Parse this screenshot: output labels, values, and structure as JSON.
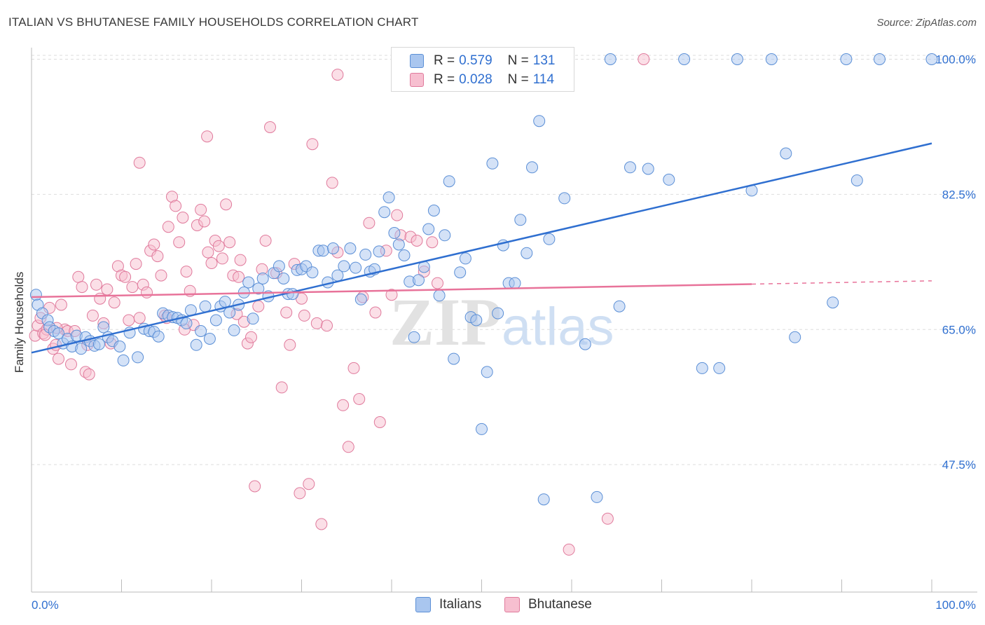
{
  "title": "ITALIAN VS BHUTANESE FAMILY HOUSEHOLDS CORRELATION CHART",
  "source": "Source: ZipAtlas.com",
  "watermark": {
    "zip": "ZIP",
    "atlas": "atlas"
  },
  "legend": {
    "italians": {
      "r_label": "R =",
      "r_value": "0.579",
      "n_label": "N =",
      "n_value": "131"
    },
    "bhutanese": {
      "r_label": "R =",
      "r_value": "0.028",
      "n_label": "N =",
      "n_value": "114"
    }
  },
  "bottom_legend": {
    "italians": "Italians",
    "bhutanese": "Bhutanese"
  },
  "colors": {
    "italians_fill": "#a9c6ef",
    "italians_stroke": "#5b8fd6",
    "italians_line": "#2f6fd0",
    "bhutanese_fill": "#f7bfd0",
    "bhutanese_stroke": "#e07a9c",
    "bhutanese_line": "#e8739a",
    "axis_label": "#2f6fd0",
    "grid": "#dddddd"
  },
  "chart_data": {
    "type": "scatter",
    "title": "ITALIAN VS BHUTANESE FAMILY HOUSEHOLDS CORRELATION CHART",
    "xlabel": "",
    "ylabel": "Family Households",
    "xlim": [
      0,
      100
    ],
    "ylim": [
      31.0,
      100.5
    ],
    "x_tick_labels": [
      "0.0%",
      "100.0%"
    ],
    "y_ticks": [
      47.5,
      65.0,
      82.5,
      100.0
    ],
    "y_tick_labels": [
      "47.5%",
      "65.0%",
      "82.5%",
      "100.0%"
    ],
    "grid": "horizontal dashed",
    "legend_position": "top-center",
    "series": [
      {
        "name": "Italians",
        "trend": {
          "x": [
            0,
            100
          ],
          "y": [
            62.0,
            89.1
          ]
        },
        "points": [
          [
            0.5,
            69.5
          ],
          [
            0.7,
            68.2
          ],
          [
            1.2,
            67.1
          ],
          [
            1.8,
            66.2
          ],
          [
            2.0,
            65.3
          ],
          [
            2.5,
            64.8
          ],
          [
            3.0,
            64.5
          ],
          [
            3.5,
            63.2
          ],
          [
            4.0,
            63.8
          ],
          [
            4.5,
            62.8
          ],
          [
            5.0,
            64.2
          ],
          [
            5.5,
            62.5
          ],
          [
            6.0,
            64.0
          ],
          [
            6.5,
            63.5
          ],
          [
            7.0,
            62.9
          ],
          [
            7.5,
            63.1
          ],
          [
            8.0,
            65.3
          ],
          [
            8.5,
            64.0
          ],
          [
            9.0,
            63.5
          ],
          [
            9.8,
            62.8
          ],
          [
            10.2,
            61.0
          ],
          [
            10.9,
            64.6
          ],
          [
            11.8,
            61.4
          ],
          [
            12.5,
            65.1
          ],
          [
            13.1,
            64.8
          ],
          [
            13.6,
            64.7
          ],
          [
            14.1,
            64.1
          ],
          [
            14.6,
            67.1
          ],
          [
            15.2,
            66.8
          ],
          [
            15.7,
            66.6
          ],
          [
            16.2,
            66.5
          ],
          [
            16.7,
            66.2
          ],
          [
            17.2,
            65.8
          ],
          [
            17.7,
            67.5
          ],
          [
            18.3,
            63.0
          ],
          [
            18.8,
            64.8
          ],
          [
            19.3,
            68.0
          ],
          [
            19.8,
            63.8
          ],
          [
            20.5,
            66.2
          ],
          [
            21.0,
            68.0
          ],
          [
            21.5,
            68.6
          ],
          [
            22.0,
            67.2
          ],
          [
            22.5,
            64.9
          ],
          [
            23.0,
            68.2
          ],
          [
            23.6,
            69.8
          ],
          [
            24.1,
            71.1
          ],
          [
            24.6,
            66.4
          ],
          [
            25.2,
            70.3
          ],
          [
            25.7,
            71.6
          ],
          [
            26.3,
            69.3
          ],
          [
            26.9,
            72.3
          ],
          [
            27.5,
            73.2
          ],
          [
            28.0,
            71.6
          ],
          [
            28.5,
            69.6
          ],
          [
            29.0,
            69.6
          ],
          [
            29.5,
            72.7
          ],
          [
            30.0,
            72.8
          ],
          [
            30.5,
            73.2
          ],
          [
            31.2,
            72.4
          ],
          [
            31.9,
            75.2
          ],
          [
            32.4,
            75.2
          ],
          [
            32.9,
            71.1
          ],
          [
            33.5,
            75.5
          ],
          [
            34.0,
            72.0
          ],
          [
            34.7,
            73.2
          ],
          [
            35.4,
            75.5
          ],
          [
            36.0,
            73.0
          ],
          [
            36.6,
            68.9
          ],
          [
            37.1,
            74.7
          ],
          [
            37.6,
            72.5
          ],
          [
            38.1,
            72.8
          ],
          [
            38.6,
            75.1
          ],
          [
            39.2,
            80.2
          ],
          [
            39.7,
            82.1
          ],
          [
            40.3,
            77.5
          ],
          [
            40.8,
            76.0
          ],
          [
            41.4,
            74.6
          ],
          [
            42.0,
            71.2
          ],
          [
            42.5,
            64.0
          ],
          [
            43.0,
            71.4
          ],
          [
            43.6,
            73.1
          ],
          [
            44.1,
            78.0
          ],
          [
            44.7,
            80.4
          ],
          [
            45.3,
            69.4
          ],
          [
            45.9,
            77.2
          ],
          [
            46.4,
            84.2
          ],
          [
            46.9,
            61.2
          ],
          [
            47.6,
            72.4
          ],
          [
            48.2,
            74.2
          ],
          [
            48.8,
            66.6
          ],
          [
            49.4,
            66.2
          ],
          [
            50.0,
            52.1
          ],
          [
            50.6,
            59.5
          ],
          [
            51.2,
            86.5
          ],
          [
            51.8,
            67.1
          ],
          [
            52.4,
            75.9
          ],
          [
            53.0,
            71.0
          ],
          [
            53.7,
            71.0
          ],
          [
            54.3,
            79.2
          ],
          [
            55.0,
            74.9
          ],
          [
            55.6,
            86.0
          ],
          [
            56.4,
            92.0
          ],
          [
            56.9,
            43.0
          ],
          [
            57.5,
            76.7
          ],
          [
            59.2,
            82.0
          ],
          [
            61.5,
            63.1
          ],
          [
            62.8,
            43.3
          ],
          [
            64.3,
            100.0
          ],
          [
            65.3,
            68.0
          ],
          [
            66.5,
            86.0
          ],
          [
            68.5,
            85.8
          ],
          [
            70.8,
            84.4
          ],
          [
            72.5,
            100.0
          ],
          [
            74.5,
            60.0
          ],
          [
            76.4,
            60.0
          ],
          [
            78.4,
            100.0
          ],
          [
            80.0,
            83.0
          ],
          [
            82.2,
            100.0
          ],
          [
            83.8,
            87.8
          ],
          [
            84.8,
            64.0
          ],
          [
            89.0,
            68.5
          ],
          [
            90.5,
            100.0
          ],
          [
            91.7,
            84.3
          ],
          [
            94.2,
            100.0
          ],
          [
            100.0,
            100.0
          ]
        ]
      },
      {
        "name": "Bhutanese",
        "trend": {
          "x": [
            0,
            100
          ],
          "y": [
            69.2,
            71.3
          ]
        },
        "points": [
          [
            0.4,
            64.2
          ],
          [
            0.7,
            65.5
          ],
          [
            1.0,
            66.5
          ],
          [
            1.3,
            64.5
          ],
          [
            1.7,
            65.0
          ],
          [
            2.0,
            67.8
          ],
          [
            2.4,
            62.5
          ],
          [
            2.7,
            63.0
          ],
          [
            3.0,
            61.2
          ],
          [
            3.3,
            68.2
          ],
          [
            3.7,
            65.0
          ],
          [
            4.0,
            64.8
          ],
          [
            4.4,
            60.5
          ],
          [
            4.8,
            64.8
          ],
          [
            5.2,
            71.8
          ],
          [
            5.6,
            70.5
          ],
          [
            6.0,
            59.5
          ],
          [
            6.4,
            59.2
          ],
          [
            6.8,
            66.8
          ],
          [
            7.2,
            70.8
          ],
          [
            7.6,
            69.0
          ],
          [
            8.0,
            65.8
          ],
          [
            8.4,
            70.2
          ],
          [
            8.8,
            63.2
          ],
          [
            9.2,
            68.5
          ],
          [
            9.6,
            73.2
          ],
          [
            10.0,
            72.0
          ],
          [
            10.4,
            71.8
          ],
          [
            10.8,
            66.2
          ],
          [
            11.2,
            70.5
          ],
          [
            11.6,
            73.5
          ],
          [
            12.0,
            66.5
          ],
          [
            12.4,
            70.8
          ],
          [
            12.8,
            69.8
          ],
          [
            13.2,
            75.2
          ],
          [
            13.6,
            76.0
          ],
          [
            14.0,
            74.5
          ],
          [
            14.4,
            72.0
          ],
          [
            14.8,
            66.8
          ],
          [
            15.2,
            78.3
          ],
          [
            15.6,
            82.2
          ],
          [
            16.0,
            81.0
          ],
          [
            16.4,
            76.3
          ],
          [
            16.8,
            79.5
          ],
          [
            17.2,
            72.5
          ],
          [
            17.6,
            70.0
          ],
          [
            18.0,
            65.6
          ],
          [
            18.4,
            78.5
          ],
          [
            18.8,
            80.5
          ],
          [
            19.2,
            79.0
          ],
          [
            19.6,
            75.0
          ],
          [
            20.0,
            73.6
          ],
          [
            20.4,
            76.5
          ],
          [
            20.8,
            75.8
          ],
          [
            21.2,
            74.2
          ],
          [
            21.6,
            81.2
          ],
          [
            22.0,
            76.3
          ],
          [
            22.4,
            72.0
          ],
          [
            22.8,
            67.0
          ],
          [
            23.2,
            74.0
          ],
          [
            23.6,
            66.0
          ],
          [
            24.0,
            63.2
          ],
          [
            24.4,
            64.0
          ],
          [
            24.8,
            44.7
          ],
          [
            25.2,
            68.0
          ],
          [
            25.6,
            72.8
          ],
          [
            26.0,
            76.5
          ],
          [
            26.5,
            91.2
          ],
          [
            27.2,
            72.3
          ],
          [
            27.8,
            57.5
          ],
          [
            28.3,
            67.2
          ],
          [
            28.7,
            63.0
          ],
          [
            29.2,
            73.5
          ],
          [
            29.8,
            43.8
          ],
          [
            30.3,
            66.8
          ],
          [
            30.8,
            45.0
          ],
          [
            31.2,
            89.0
          ],
          [
            31.7,
            65.8
          ],
          [
            32.2,
            39.8
          ],
          [
            32.8,
            65.5
          ],
          [
            33.4,
            84.0
          ],
          [
            34.0,
            75.0
          ],
          [
            34.6,
            55.2
          ],
          [
            35.2,
            49.8
          ],
          [
            35.8,
            60.0
          ],
          [
            36.4,
            56.0
          ],
          [
            36.8,
            69.2
          ],
          [
            37.5,
            78.8
          ],
          [
            38.2,
            67.2
          ],
          [
            38.7,
            53.0
          ],
          [
            39.4,
            75.2
          ],
          [
            40.0,
            69.5
          ],
          [
            40.6,
            79.8
          ],
          [
            41.0,
            77.2
          ],
          [
            42.1,
            77.0
          ],
          [
            42.8,
            76.5
          ],
          [
            43.6,
            72.5
          ],
          [
            44.5,
            76.3
          ],
          [
            45.1,
            71.0
          ],
          [
            59.7,
            36.5
          ],
          [
            64.0,
            40.5
          ],
          [
            68.0,
            100.0
          ],
          [
            1.5,
            64.3
          ],
          [
            2.8,
            65.2
          ],
          [
            6.2,
            63.0
          ],
          [
            15.0,
            66.5
          ],
          [
            17.0,
            65.0
          ],
          [
            23.0,
            71.8
          ],
          [
            30.0,
            69.0
          ],
          [
            12.0,
            86.6
          ],
          [
            19.5,
            90.0
          ],
          [
            34.0,
            98.0
          ],
          [
            44.0,
            100.0
          ]
        ]
      }
    ]
  }
}
